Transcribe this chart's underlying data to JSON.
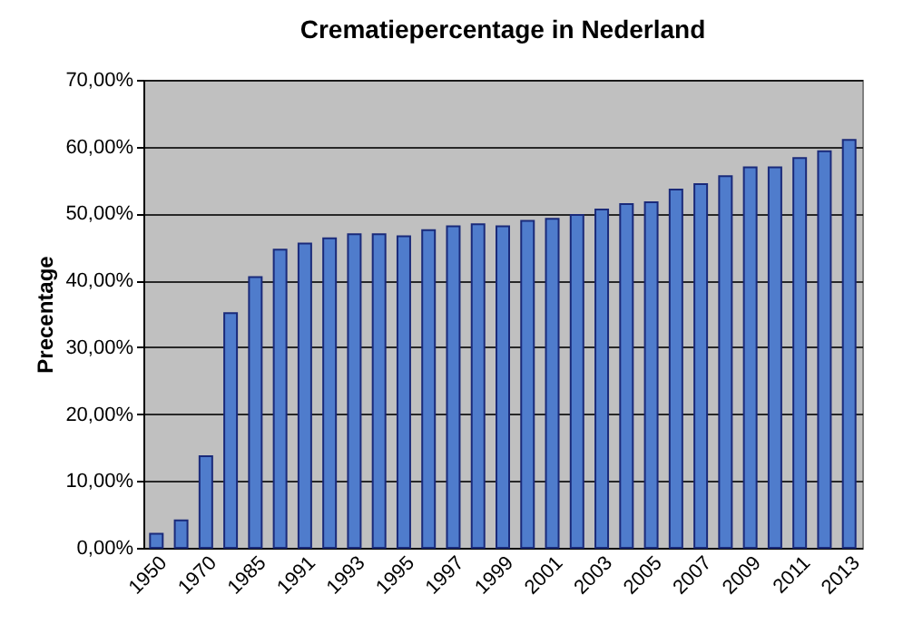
{
  "chart_data": {
    "type": "bar",
    "title": "Crematiepercentage in Nederland",
    "ylabel": "Precentage",
    "categories": [
      "1950",
      null,
      "1970",
      null,
      "1985",
      null,
      "1991",
      null,
      "1993",
      null,
      "1995",
      null,
      "1997",
      null,
      "1999",
      null,
      "2001",
      null,
      "2003",
      null,
      "2005",
      null,
      "2007",
      null,
      "2009",
      null,
      "2011",
      null,
      "2013"
    ],
    "values": [
      2.1,
      4.1,
      13.7,
      35.1,
      40.5,
      44.6,
      45.5,
      46.3,
      46.9,
      46.9,
      46.6,
      47.5,
      48.1,
      48.4,
      48.1,
      48.9,
      49.2,
      49.8,
      50.6,
      51.4,
      51.7,
      53.6,
      54.4,
      55.6,
      56.9,
      56.9,
      58.3,
      59.3,
      61.0
    ],
    "color": "#4f7ccc",
    "ylim": [
      0,
      70
    ],
    "yticks": [
      {
        "value": 0,
        "label": "0,00%"
      },
      {
        "value": 10,
        "label": "10,00%"
      },
      {
        "value": 20,
        "label": "20,00%"
      },
      {
        "value": 30,
        "label": "30,00%"
      },
      {
        "value": 40,
        "label": "40,00%"
      },
      {
        "value": 50,
        "label": "50,00%"
      },
      {
        "value": 60,
        "label": "60,00%"
      },
      {
        "value": 70,
        "label": "70,00%"
      }
    ],
    "grid": "y"
  }
}
